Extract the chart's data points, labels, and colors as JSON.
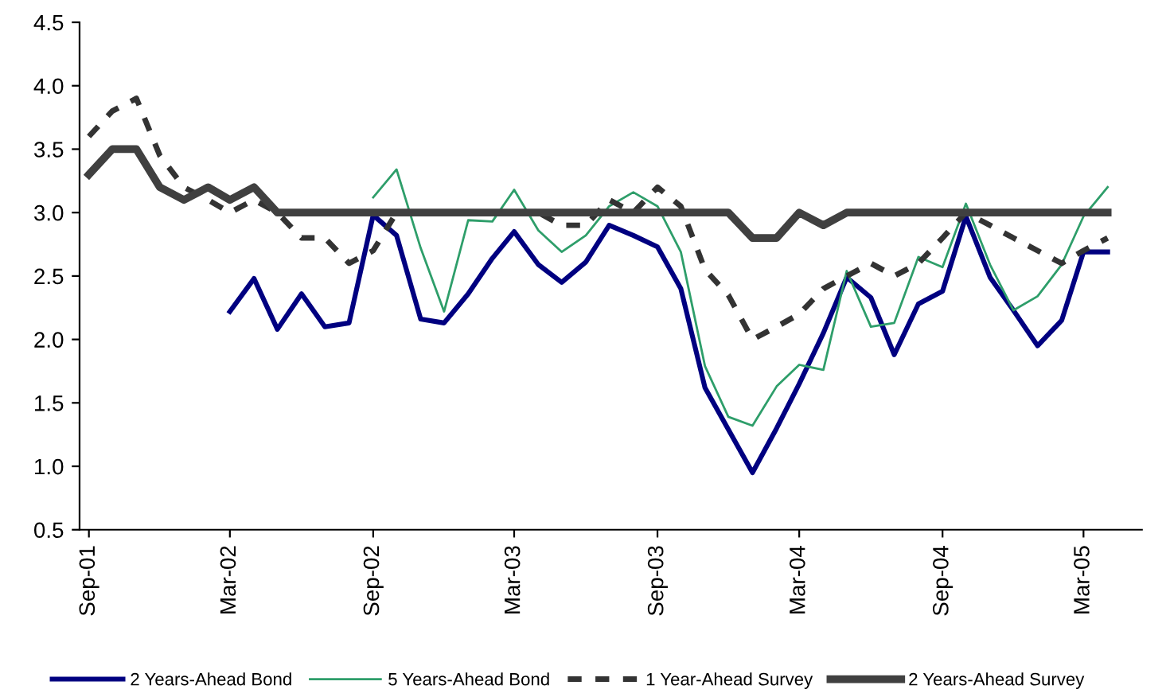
{
  "chart_data": {
    "type": "line",
    "x": [
      "2001-09",
      "2001-10",
      "2001-11",
      "2001-12",
      "2002-01",
      "2002-02",
      "2002-03",
      "2002-04",
      "2002-05",
      "2002-06",
      "2002-07",
      "2002-08",
      "2002-09",
      "2002-10",
      "2002-11",
      "2002-12",
      "2003-01",
      "2003-02",
      "2003-03",
      "2003-04",
      "2003-05",
      "2003-06",
      "2003-07",
      "2003-08",
      "2003-09",
      "2003-10",
      "2003-11",
      "2003-12",
      "2004-01",
      "2004-02",
      "2004-03",
      "2004-04",
      "2004-05",
      "2004-06",
      "2004-07",
      "2004-08",
      "2004-09",
      "2004-10",
      "2004-11",
      "2004-12",
      "2005-01",
      "2005-02",
      "2005-03",
      "2005-04"
    ],
    "series": [
      {
        "name": "2 Years-Ahead Bond",
        "color": "#000080",
        "line_style": "solid",
        "values": [
          null,
          null,
          null,
          null,
          null,
          null,
          2.22,
          2.48,
          2.08,
          2.36,
          2.1,
          2.13,
          2.98,
          2.82,
          2.16,
          2.13,
          2.36,
          2.64,
          2.85,
          2.59,
          2.45,
          2.61,
          2.9,
          2.82,
          2.73,
          2.4,
          1.62,
          1.29,
          0.95,
          1.3,
          1.65,
          2.05,
          2.49,
          2.33,
          1.88,
          2.28,
          2.38,
          2.97,
          2.49,
          2.23,
          1.95,
          2.15,
          2.69,
          2.69
        ]
      },
      {
        "name": "5 Years-Ahead Bond",
        "color": "#2e9e6a",
        "line_style": "solid",
        "values": [
          null,
          null,
          null,
          null,
          null,
          null,
          null,
          null,
          null,
          null,
          null,
          null,
          3.12,
          3.34,
          2.72,
          2.22,
          2.94,
          2.93,
          3.18,
          2.86,
          2.69,
          2.82,
          3.05,
          3.16,
          3.05,
          2.69,
          1.79,
          1.39,
          1.32,
          1.63,
          1.8,
          1.76,
          2.54,
          2.1,
          2.13,
          2.65,
          2.57,
          3.07,
          2.59,
          2.23,
          2.34,
          2.59,
          2.97,
          3.2
        ]
      },
      {
        "name": "1 Year-Ahead Survey",
        "color": "#333333",
        "line_style": "dashed",
        "values": [
          3.6,
          3.8,
          3.9,
          3.45,
          3.2,
          3.1,
          3.0,
          3.1,
          3.0,
          2.8,
          2.8,
          2.6,
          2.7,
          3.0,
          3.0,
          3.0,
          3.0,
          3.0,
          3.0,
          3.0,
          2.9,
          2.9,
          3.1,
          3.0,
          3.2,
          3.05,
          2.55,
          2.35,
          2.0,
          2.1,
          2.2,
          2.4,
          2.5,
          2.6,
          2.5,
          2.6,
          2.8,
          3.0,
          2.9,
          2.8,
          2.7,
          2.6,
          2.7,
          2.8
        ]
      },
      {
        "name": "2 Years-Ahead Survey",
        "color": "#404040",
        "line_style": "solid",
        "values": [
          3.3,
          3.5,
          3.5,
          3.2,
          3.1,
          3.2,
          3.1,
          3.2,
          3.0,
          3.0,
          3.0,
          3.0,
          3.0,
          3.0,
          3.0,
          3.0,
          3.0,
          3.0,
          3.0,
          3.0,
          3.0,
          3.0,
          3.0,
          3.0,
          3.0,
          3.0,
          3.0,
          3.0,
          2.8,
          2.8,
          3.0,
          2.9,
          3.0,
          3.0,
          3.0,
          3.0,
          3.0,
          3.0,
          3.0,
          3.0,
          3.0,
          3.0,
          3.0,
          3.0
        ]
      }
    ],
    "xlim": [
      "2001-08-20",
      "2005-05-15"
    ],
    "xticks": [
      {
        "value": "2001-09",
        "label": "Sep-01"
      },
      {
        "value": "2002-03",
        "label": "Mar-02"
      },
      {
        "value": "2002-09",
        "label": "Sep-02"
      },
      {
        "value": "2003-03",
        "label": "Mar-03"
      },
      {
        "value": "2003-09",
        "label": "Sep-03"
      },
      {
        "value": "2004-03",
        "label": "Mar-04"
      },
      {
        "value": "2004-09",
        "label": "Sep-04"
      },
      {
        "value": "2005-03",
        "label": "Mar-05"
      }
    ],
    "ylim": [
      0.5,
      4.5
    ],
    "yticks": [
      {
        "value": 0.5,
        "label": "0.5"
      },
      {
        "value": 1,
        "label": "1.0"
      },
      {
        "value": 1.5,
        "label": "1.5"
      },
      {
        "value": 2,
        "label": "2.0"
      },
      {
        "value": 2.5,
        "label": "2.5"
      },
      {
        "value": 3,
        "label": "3.0"
      },
      {
        "value": 3.5,
        "label": "3.5"
      },
      {
        "value": 4,
        "label": "4.0"
      },
      {
        "value": 4.5,
        "label": "4.5"
      }
    ],
    "grid": false,
    "legend": "bottom",
    "marker": "none"
  }
}
